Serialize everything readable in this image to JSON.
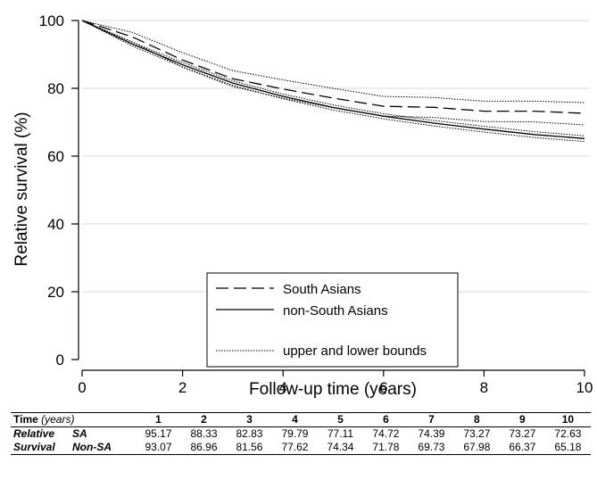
{
  "chart_data": {
    "type": "line",
    "xlabel": "Follow-up time (years)",
    "ylabel": "Relative survival (%)",
    "xlim": [
      0,
      10
    ],
    "ylim": [
      0,
      100
    ],
    "xticks": [
      0,
      2,
      4,
      6,
      8,
      10
    ],
    "yticks": [
      0,
      20,
      40,
      60,
      80,
      100
    ],
    "grid": "horizontal",
    "legend_position": "bottom-center",
    "x": [
      0,
      1,
      2,
      3,
      4,
      5,
      6,
      7,
      8,
      9,
      10
    ],
    "series": [
      {
        "name": "South Asians",
        "style": "dashed",
        "values": [
          100,
          95.17,
          88.33,
          82.83,
          79.79,
          77.11,
          74.72,
          74.39,
          73.27,
          73.27,
          72.63
        ]
      },
      {
        "name": "non-South Asians",
        "style": "solid",
        "values": [
          100,
          93.07,
          86.96,
          81.56,
          77.62,
          74.34,
          71.78,
          69.73,
          67.98,
          66.37,
          65.18
        ]
      }
    ],
    "bounds": [
      {
        "name": "South Asians upper",
        "values": [
          100,
          96.5,
          90.5,
          85.2,
          82.5,
          80.0,
          77.6,
          77.3,
          76.2,
          76.2,
          75.8
        ]
      },
      {
        "name": "South Asians lower",
        "values": [
          100,
          93.7,
          86.2,
          80.5,
          77.1,
          74.3,
          71.8,
          71.4,
          70.2,
          70.1,
          69.2
        ]
      },
      {
        "name": "non-South Asians upper",
        "values": [
          100,
          93.6,
          87.6,
          82.2,
          78.3,
          75.1,
          72.5,
          70.5,
          68.8,
          67.2,
          66.0
        ]
      },
      {
        "name": "non-South Asians lower",
        "values": [
          100,
          92.5,
          86.3,
          80.9,
          76.9,
          73.6,
          71.0,
          68.9,
          67.1,
          65.5,
          64.3
        ]
      }
    ],
    "legend": {
      "sa": "South Asians",
      "nonsa": "non-South Asians",
      "bounds": "upper and lower bounds"
    }
  },
  "table": {
    "header_time": "Time",
    "header_unit": "(years)",
    "years": [
      "1",
      "2",
      "3",
      "4",
      "5",
      "6",
      "7",
      "8",
      "9",
      "10"
    ],
    "rows": [
      {
        "label1": "Relative",
        "label2": "SA",
        "values": [
          "95.17",
          "88.33",
          "82.83",
          "79.79",
          "77.11",
          "74.72",
          "74.39",
          "73.27",
          "73.27",
          "72.63"
        ]
      },
      {
        "label1": "Survival",
        "label2": "Non-SA",
        "values": [
          "93.07",
          "86.96",
          "81.56",
          "77.62",
          "74.34",
          "71.78",
          "69.73",
          "67.98",
          "66.37",
          "65.18"
        ]
      }
    ]
  }
}
